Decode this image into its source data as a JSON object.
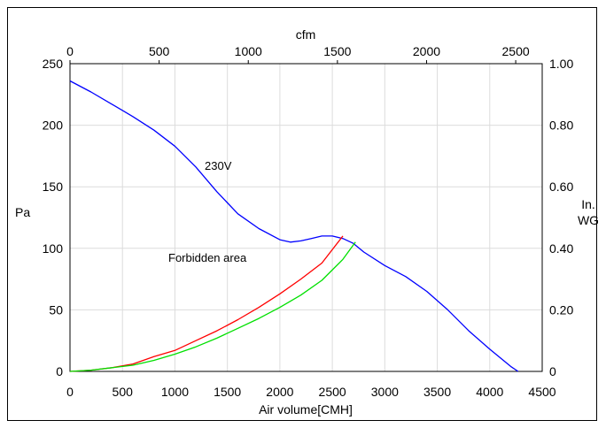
{
  "chart_data": {
    "type": "line",
    "top_axis_label": "cfm",
    "bottom_axis_label": "Air volume[CMH]",
    "left_axis_label": "Pa",
    "right_axis_label_line1": "In.",
    "right_axis_label_line2": "WG",
    "x_ticks": [
      "0",
      "500",
      "1000",
      "1500",
      "2000",
      "2500",
      "3000",
      "3500",
      "4000",
      "4500"
    ],
    "x_tick_values": [
      0,
      500,
      1000,
      1500,
      2000,
      2500,
      3000,
      3500,
      4000,
      4500
    ],
    "top_ticks": [
      "0",
      "500",
      "1000",
      "1500",
      "2000",
      "2500"
    ],
    "top_tick_values": [
      0,
      500,
      1000,
      1500,
      2000,
      2500
    ],
    "y_ticks": [
      "0",
      "50",
      "100",
      "150",
      "200",
      "250"
    ],
    "y_tick_values": [
      0,
      50,
      100,
      150,
      200,
      250
    ],
    "right_ticks": [
      "0",
      "0.20",
      "0.40",
      "0.60",
      "0.80",
      "1.00"
    ],
    "right_tick_values": [
      0,
      0.2,
      0.4,
      0.6,
      0.8,
      1.0
    ],
    "xlim": [
      0,
      4500
    ],
    "ylim": [
      0,
      250
    ],
    "grid": true,
    "annotations": [
      {
        "text": "230V",
        "x": 1420,
        "y": 168
      },
      {
        "text": "Forbidden area",
        "x": 1350,
        "y": 93
      }
    ],
    "series": [
      {
        "color": "#0000ff",
        "x": [
          0,
          200,
          400,
          600,
          800,
          1000,
          1200,
          1400,
          1600,
          1800,
          2000,
          2100,
          2200,
          2300,
          2400,
          2500,
          2600,
          2700,
          2800,
          3000,
          3200,
          3400,
          3600,
          3800,
          4000,
          4200,
          4270
        ],
        "y": [
          236,
          227,
          217,
          207,
          196,
          183,
          166,
          146,
          128,
          116,
          107,
          105,
          106,
          108,
          110,
          110,
          108,
          104,
          97,
          86,
          77,
          65,
          50,
          33,
          18,
          4,
          0
        ]
      },
      {
        "color": "#ff0000",
        "x": [
          0,
          200,
          400,
          600,
          800,
          1000,
          1200,
          1400,
          1600,
          1800,
          2000,
          2200,
          2400,
          2600
        ],
        "y": [
          0,
          1,
          3,
          6,
          12,
          17,
          25,
          33,
          42,
          52,
          63,
          75,
          88,
          110
        ]
      },
      {
        "color": "#00e000",
        "x": [
          0,
          200,
          400,
          600,
          800,
          1000,
          1200,
          1400,
          1600,
          1800,
          2000,
          2200,
          2400,
          2600,
          2720
        ],
        "y": [
          0,
          1,
          3,
          5,
          9,
          14,
          20,
          27,
          35,
          43,
          52,
          62,
          74,
          91,
          105
        ]
      }
    ]
  }
}
